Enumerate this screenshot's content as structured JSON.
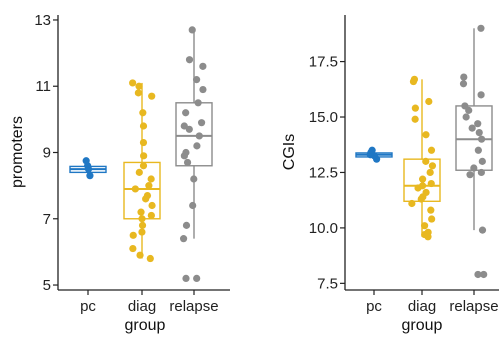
{
  "chart_data": [
    {
      "type": "boxplot",
      "xlabel": "group",
      "ylabel": "promoters",
      "ylim": [
        4.85,
        13.15
      ],
      "yticks": [
        5,
        7,
        9,
        11,
        13
      ],
      "ytick_labels": [
        "5",
        "7",
        "9",
        "11",
        "13"
      ],
      "categories": [
        "pc",
        "diag",
        "relapse"
      ],
      "grid": false,
      "legend": "none",
      "series": [
        {
          "name": "pc",
          "color": "#1f77c4",
          "box": {
            "min": 8.3,
            "q1": 8.4,
            "median": 8.5,
            "q3": 8.58,
            "max": 8.75
          },
          "points": [
            8.3,
            8.5,
            8.6,
            8.75
          ]
        },
        {
          "name": "diag",
          "color": "#e8b820",
          "box": {
            "min": 5.8,
            "q1": 7.0,
            "median": 7.9,
            "q3": 8.7,
            "max": 11.1
          },
          "points": [
            11.1,
            11.0,
            10.8,
            10.7,
            10.2,
            9.8,
            9.3,
            8.9,
            8.6,
            8.4,
            8.2,
            8.0,
            7.9,
            7.7,
            7.6,
            7.4,
            7.2,
            7.1,
            7.0,
            6.8,
            6.6,
            6.5,
            6.1,
            5.9,
            5.8
          ]
        },
        {
          "name": "relapse",
          "color": "#8c8c8c",
          "box": {
            "min": 6.4,
            "q1": 8.6,
            "median": 9.5,
            "q3": 10.5,
            "max": 12.7
          },
          "points": [
            12.7,
            11.8,
            11.6,
            11.2,
            10.9,
            10.5,
            10.2,
            9.9,
            9.8,
            9.7,
            9.5,
            9.2,
            9.0,
            8.9,
            8.7,
            8.2,
            7.4,
            6.8,
            6.4,
            5.2,
            5.2
          ]
        }
      ]
    },
    {
      "type": "boxplot",
      "xlabel": "group",
      "ylabel": "CGIs",
      "ylim": [
        7.2,
        19.6
      ],
      "yticks": [
        7.5,
        10.0,
        12.5,
        15.0,
        17.5
      ],
      "ytick_labels": [
        "7.5",
        "10.0",
        "12.5",
        "15.0",
        "17.5"
      ],
      "categories": [
        "pc",
        "diag",
        "relapse"
      ],
      "grid": false,
      "legend": "none",
      "series": [
        {
          "name": "pc",
          "color": "#1f77c4",
          "box": {
            "min": 13.1,
            "q1": 13.2,
            "median": 13.3,
            "q3": 13.38,
            "max": 13.5
          },
          "points": [
            13.1,
            13.25,
            13.3,
            13.4,
            13.5
          ]
        },
        {
          "name": "diag",
          "color": "#e8b820",
          "box": {
            "min": 9.6,
            "q1": 11.2,
            "median": 11.9,
            "q3": 13.1,
            "max": 16.7
          },
          "points": [
            16.7,
            16.6,
            15.7,
            15.4,
            14.9,
            14.2,
            13.5,
            13.0,
            12.8,
            12.5,
            12.2,
            12.0,
            11.9,
            11.8,
            11.6,
            11.4,
            11.3,
            11.1,
            10.8,
            10.4,
            10.1,
            9.8,
            9.7,
            9.6
          ]
        },
        {
          "name": "relapse",
          "color": "#8c8c8c",
          "box": {
            "min": 9.9,
            "q1": 12.6,
            "median": 14.0,
            "q3": 15.5,
            "max": 19.0
          },
          "points": [
            19.0,
            16.8,
            16.5,
            16.0,
            15.5,
            15.3,
            15.0,
            14.7,
            14.5,
            14.3,
            14.0,
            13.5,
            13.0,
            12.7,
            12.5,
            12.4,
            9.9,
            7.9,
            7.9
          ]
        }
      ]
    }
  ]
}
